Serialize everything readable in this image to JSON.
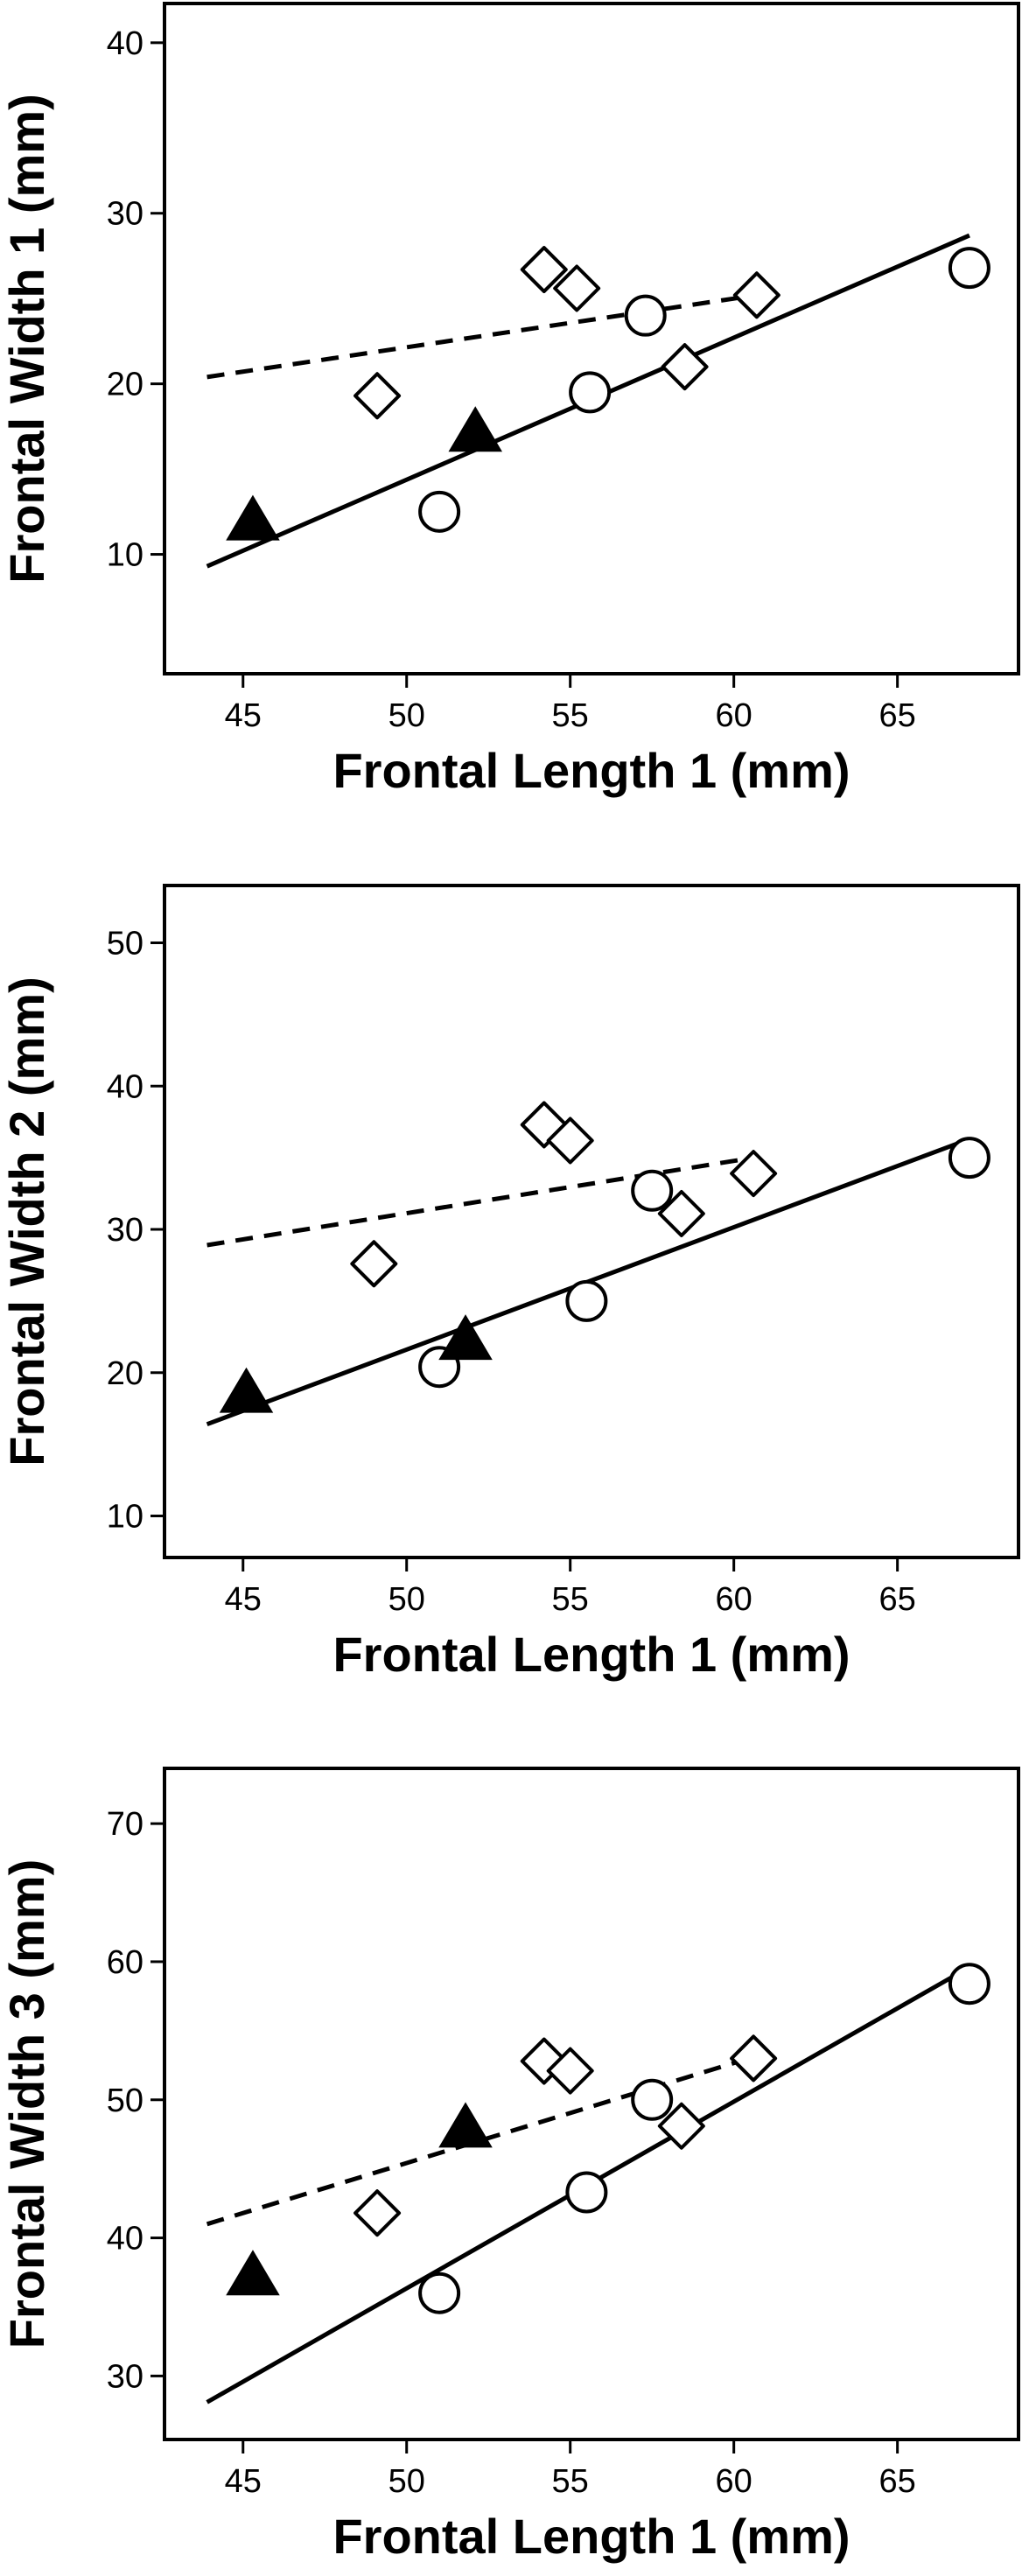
{
  "chart_data": [
    {
      "type": "scatter",
      "xlabel": "Frontal Length 1 (mm)",
      "ylabel": "Frontal Width 1 (mm)",
      "xlim": [
        42.6,
        68.7
      ],
      "ylim": [
        3.0,
        42.3
      ],
      "xticks": [
        45,
        50,
        55,
        60,
        65
      ],
      "yticks": [
        10,
        20,
        30,
        40
      ],
      "grid": false,
      "series": [
        {
          "marker": "circle",
          "points": [
            [
              51.0,
              12.5
            ],
            [
              55.6,
              19.5
            ],
            [
              57.3,
              24.0
            ],
            [
              67.2,
              26.8
            ]
          ]
        },
        {
          "marker": "diamond",
          "points": [
            [
              49.1,
              19.3
            ],
            [
              54.2,
              26.7
            ],
            [
              55.2,
              25.6
            ],
            [
              58.5,
              21.0
            ],
            [
              60.7,
              25.2
            ]
          ]
        },
        {
          "marker": "triangle",
          "points": [
            [
              45.3,
              12.0
            ],
            [
              52.1,
              17.2
            ]
          ]
        }
      ],
      "lines": [
        {
          "style": "solid",
          "x": [
            43.9,
            67.2
          ],
          "y": [
            9.3,
            28.7
          ]
        },
        {
          "style": "dashed",
          "x": [
            43.9,
            60.7
          ],
          "y": [
            20.4,
            25.2
          ]
        }
      ]
    },
    {
      "type": "scatter",
      "xlabel": "Frontal Length 1 (mm)",
      "ylabel": "Frontal Width 2 (mm)",
      "xlim": [
        42.6,
        68.7
      ],
      "ylim": [
        7.1,
        54.0
      ],
      "xticks": [
        45,
        50,
        55,
        60,
        65
      ],
      "yticks": [
        10,
        20,
        30,
        40,
        50
      ],
      "grid": false,
      "series": [
        {
          "marker": "circle",
          "points": [
            [
              51.0,
              20.4
            ],
            [
              55.5,
              25.0
            ],
            [
              57.5,
              32.7
            ],
            [
              67.2,
              35.0
            ]
          ]
        },
        {
          "marker": "diamond",
          "points": [
            [
              49.0,
              27.6
            ],
            [
              54.2,
              37.3
            ],
            [
              55.0,
              36.2
            ],
            [
              58.4,
              31.1
            ],
            [
              60.6,
              33.9
            ]
          ]
        },
        {
          "marker": "triangle",
          "points": [
            [
              45.1,
              18.6
            ],
            [
              51.8,
              22.3
            ]
          ]
        }
      ],
      "lines": [
        {
          "style": "solid",
          "x": [
            43.9,
            67.2
          ],
          "y": [
            16.4,
            36.3
          ]
        },
        {
          "style": "dashed",
          "x": [
            43.9,
            60.6
          ],
          "y": [
            28.9,
            35.0
          ]
        }
      ]
    },
    {
      "type": "scatter",
      "xlabel": "Frontal Length 1 (mm)",
      "ylabel": "Frontal Width 3 (mm)",
      "xlim": [
        42.6,
        68.7
      ],
      "ylim": [
        25.4,
        74.0
      ],
      "xticks": [
        45,
        50,
        55,
        60,
        65
      ],
      "yticks": [
        30,
        40,
        50,
        60,
        70
      ],
      "grid": false,
      "series": [
        {
          "marker": "circle",
          "points": [
            [
              51.0,
              36.0
            ],
            [
              55.5,
              43.3
            ],
            [
              57.5,
              50.0
            ],
            [
              67.2,
              58.4
            ]
          ]
        },
        {
          "marker": "diamond",
          "points": [
            [
              49.1,
              41.8
            ],
            [
              54.2,
              52.8
            ],
            [
              55.0,
              52.1
            ],
            [
              58.4,
              48.1
            ],
            [
              60.6,
              53.0
            ]
          ]
        },
        {
          "marker": "triangle",
          "points": [
            [
              45.3,
              37.3
            ],
            [
              51.8,
              48.0
            ]
          ]
        }
      ],
      "lines": [
        {
          "style": "solid",
          "x": [
            43.9,
            67.2
          ],
          "y": [
            28.1,
            59.6
          ]
        },
        {
          "style": "dashed",
          "x": [
            43.9,
            60.6
          ],
          "y": [
            41.0,
            53.1
          ]
        }
      ]
    }
  ]
}
